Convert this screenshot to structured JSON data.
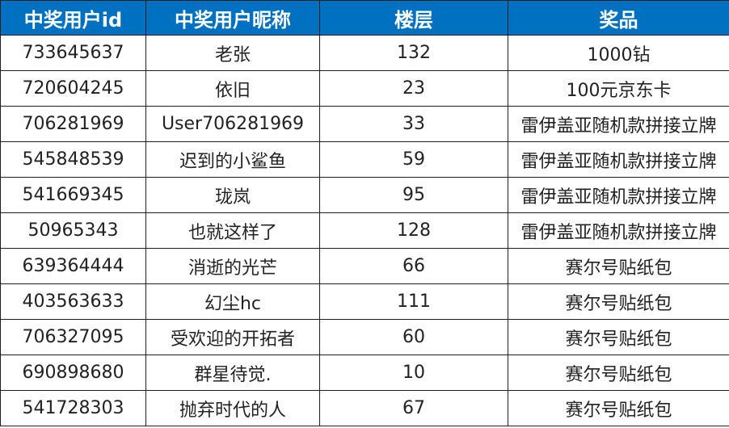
{
  "table": {
    "header_color": "#0070c0",
    "columns": [
      "中奖用户id",
      "中奖用户昵称",
      "楼层",
      "奖品"
    ],
    "rows": [
      [
        "733645637",
        "老张",
        "132",
        "1000钻"
      ],
      [
        "720604245",
        "依旧",
        "23",
        "100元京东卡"
      ],
      [
        "706281969",
        "User706281969",
        "33",
        "雷伊盖亚随机款拼接立牌"
      ],
      [
        "545848539",
        "迟到的小鲨鱼",
        "59",
        "雷伊盖亚随机款拼接立牌"
      ],
      [
        "541669345",
        "珑岚",
        "95",
        "雷伊盖亚随机款拼接立牌"
      ],
      [
        "50965343",
        "也就这样了",
        "128",
        "雷伊盖亚随机款拼接立牌"
      ],
      [
        "639364444",
        "消逝的光芒",
        "66",
        "赛尔号贴纸包"
      ],
      [
        "403563633",
        "幻尘hc",
        "111",
        "赛尔号贴纸包"
      ],
      [
        "706327095",
        "受欢迎的开拓者",
        "60",
        "赛尔号贴纸包"
      ],
      [
        "690898680",
        "群星待觉.",
        "10",
        "赛尔号贴纸包"
      ],
      [
        "541728303",
        "抛弃时代的人",
        "67",
        "赛尔号贴纸包"
      ]
    ]
  }
}
